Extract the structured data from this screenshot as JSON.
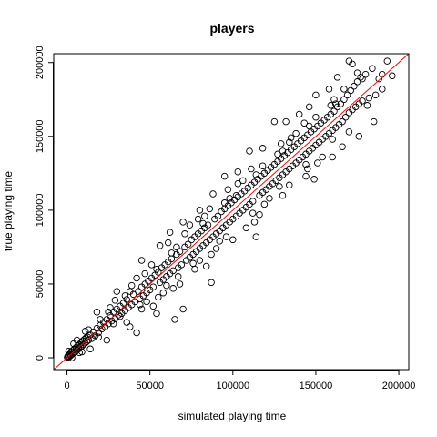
{
  "chart_data": {
    "type": "scatter",
    "title": "players",
    "xlabel": "simulated playing time",
    "ylabel": "true playing time",
    "xlim": [
      -8000,
      206000
    ],
    "ylim": [
      -8000,
      206000
    ],
    "x_ticks": [
      0,
      50000,
      100000,
      150000,
      200000
    ],
    "y_ticks": [
      0,
      50000,
      100000,
      150000,
      200000
    ],
    "x_tick_labels": [
      "0",
      "50000",
      "100000",
      "150000",
      "200000"
    ],
    "y_tick_labels": [
      "0",
      "50000",
      "100000",
      "150000",
      "200000"
    ],
    "reference_line": {
      "type": "identity",
      "intercept": 0,
      "slope": 1,
      "color": "#ff0000"
    },
    "grid": false,
    "marker": "open-circle",
    "point_color": "#000000",
    "points": [
      [
        200,
        300
      ],
      [
        500,
        1200
      ],
      [
        800,
        600
      ],
      [
        1200,
        2000
      ],
      [
        1500,
        800
      ],
      [
        1800,
        3000
      ],
      [
        2200,
        1500
      ],
      [
        2500,
        4200
      ],
      [
        3000,
        2500
      ],
      [
        3500,
        5000
      ],
      [
        4000,
        3200
      ],
      [
        4500,
        6000
      ],
      [
        5000,
        4000
      ],
      [
        5500,
        7000
      ],
      [
        6000,
        5200
      ],
      [
        6500,
        8200
      ],
      [
        7000,
        6000
      ],
      [
        7500,
        9000
      ],
      [
        8000,
        7500
      ],
      [
        8500,
        10500
      ],
      [
        9000,
        8000
      ],
      [
        9500,
        11500
      ],
      [
        10000,
        9000
      ],
      [
        10500,
        12500
      ],
      [
        11000,
        10000
      ],
      [
        11500,
        13500
      ],
      [
        12000,
        11000
      ],
      [
        12500,
        14000
      ],
      [
        13000,
        12000
      ],
      [
        14000,
        15500
      ],
      [
        15000,
        13000
      ],
      [
        16000,
        17500
      ],
      [
        17000,
        15000
      ],
      [
        18000,
        20000
      ],
      [
        19000,
        17000
      ],
      [
        20000,
        22000
      ],
      [
        21000,
        19500
      ],
      [
        22000,
        24000
      ],
      [
        23000,
        21000
      ],
      [
        24000,
        26000
      ],
      [
        25000,
        23000
      ],
      [
        26000,
        28500
      ],
      [
        27000,
        25000
      ],
      [
        28000,
        31000
      ],
      [
        29000,
        26500
      ],
      [
        30000,
        33000
      ],
      [
        31000,
        29000
      ],
      [
        32000,
        35000
      ],
      [
        33000,
        30000
      ],
      [
        34000,
        37000
      ],
      [
        35000,
        32000
      ],
      [
        36000,
        39500
      ],
      [
        37000,
        34000
      ],
      [
        38000,
        21000
      ],
      [
        39000,
        36000
      ],
      [
        40000,
        43000
      ],
      [
        41000,
        38000
      ],
      [
        42000,
        17000
      ],
      [
        43000,
        45000
      ],
      [
        44000,
        40000
      ],
      [
        45000,
        48000
      ],
      [
        46000,
        42000
      ],
      [
        47000,
        50000
      ],
      [
        48000,
        44000
      ],
      [
        49000,
        52000
      ],
      [
        50000,
        46000
      ],
      [
        51000,
        54000
      ],
      [
        52000,
        48000
      ],
      [
        53000,
        56000
      ],
      [
        54000,
        30000
      ],
      [
        55000,
        58000
      ],
      [
        56000,
        51000
      ],
      [
        57000,
        61000
      ],
      [
        58000,
        53000
      ],
      [
        59000,
        63000
      ],
      [
        60000,
        55000
      ],
      [
        61000,
        65000
      ],
      [
        62000,
        57000
      ],
      [
        63000,
        67000
      ],
      [
        64000,
        59000
      ],
      [
        65000,
        26000
      ],
      [
        66000,
        70000
      ],
      [
        67000,
        61000
      ],
      [
        68000,
        72000
      ],
      [
        69000,
        63000
      ],
      [
        70000,
        33000
      ],
      [
        71000,
        75000
      ],
      [
        72000,
        66000
      ],
      [
        73000,
        77000
      ],
      [
        74000,
        68000
      ],
      [
        75000,
        80000
      ],
      [
        76000,
        70000
      ],
      [
        77000,
        82000
      ],
      [
        78000,
        72000
      ],
      [
        79000,
        84000
      ],
      [
        80000,
        74000
      ],
      [
        81000,
        86000
      ],
      [
        82000,
        76000
      ],
      [
        83000,
        88000
      ],
      [
        84000,
        78000
      ],
      [
        85000,
        90000
      ],
      [
        86000,
        80000
      ],
      [
        87000,
        51000
      ],
      [
        88000,
        82000
      ],
      [
        89000,
        94000
      ],
      [
        90000,
        84000
      ],
      [
        91000,
        96000
      ],
      [
        92000,
        86000
      ],
      [
        93000,
        99000
      ],
      [
        94000,
        88000
      ],
      [
        95000,
        101000
      ],
      [
        96000,
        90000
      ],
      [
        97000,
        103000
      ],
      [
        98000,
        92000
      ],
      [
        99000,
        105000
      ],
      [
        100000,
        94000
      ],
      [
        101000,
        107000
      ],
      [
        102000,
        96000
      ],
      [
        103000,
        109000
      ],
      [
        104000,
        98000
      ],
      [
        105000,
        111000
      ],
      [
        106000,
        100000
      ],
      [
        107000,
        113000
      ],
      [
        108000,
        102000
      ],
      [
        109000,
        115000
      ],
      [
        110000,
        104000
      ],
      [
        111000,
        117000
      ],
      [
        112000,
        106000
      ],
      [
        113000,
        119000
      ],
      [
        114000,
        82000
      ],
      [
        115000,
        121000
      ],
      [
        116000,
        110000
      ],
      [
        117000,
        123000
      ],
      [
        118000,
        112000
      ],
      [
        119000,
        125000
      ],
      [
        120000,
        114000
      ],
      [
        121000,
        127000
      ],
      [
        122000,
        116000
      ],
      [
        123000,
        129000
      ],
      [
        124000,
        118000
      ],
      [
        125000,
        131000
      ],
      [
        126000,
        120000
      ],
      [
        127000,
        133000
      ],
      [
        128000,
        122000
      ],
      [
        129000,
        135000
      ],
      [
        130000,
        124000
      ],
      [
        131000,
        137000
      ],
      [
        132000,
        126000
      ],
      [
        133000,
        139000
      ],
      [
        134000,
        128000
      ],
      [
        135000,
        141000
      ],
      [
        136000,
        130000
      ],
      [
        137000,
        143000
      ],
      [
        138000,
        132000
      ],
      [
        139000,
        145000
      ],
      [
        140000,
        134000
      ],
      [
        141000,
        147000
      ],
      [
        142000,
        136000
      ],
      [
        143000,
        149000
      ],
      [
        144000,
        138000
      ],
      [
        145000,
        151000
      ],
      [
        146000,
        140000
      ],
      [
        147000,
        153000
      ],
      [
        148000,
        142000
      ],
      [
        149000,
        155000
      ],
      [
        150000,
        144000
      ],
      [
        151000,
        157000
      ],
      [
        152000,
        146000
      ],
      [
        153000,
        159000
      ],
      [
        154000,
        148000
      ],
      [
        155000,
        161000
      ],
      [
        156000,
        150000
      ],
      [
        157000,
        163000
      ],
      [
        158000,
        152000
      ],
      [
        159000,
        165000
      ],
      [
        160000,
        154000
      ],
      [
        161000,
        167000
      ],
      [
        162000,
        156000
      ],
      [
        163000,
        170000
      ],
      [
        164000,
        158000
      ],
      [
        165000,
        172000
      ],
      [
        166000,
        160000
      ],
      [
        167000,
        175000
      ],
      [
        168000,
        163000
      ],
      [
        169000,
        178000
      ],
      [
        170000,
        166000
      ],
      [
        171000,
        181000
      ],
      [
        172000,
        168000
      ],
      [
        173000,
        184000
      ],
      [
        174000,
        170000
      ],
      [
        175000,
        187000
      ],
      [
        176000,
        172000
      ],
      [
        177000,
        190000
      ],
      [
        178000,
        174000
      ],
      [
        180000,
        192000
      ],
      [
        182000,
        176000
      ],
      [
        184000,
        196000
      ],
      [
        186000,
        178000
      ],
      [
        188000,
        189000
      ],
      [
        190000,
        192000
      ],
      [
        193000,
        201000
      ],
      [
        196000,
        191000
      ],
      [
        170000,
        201000
      ],
      [
        172000,
        199000
      ],
      [
        163000,
        190000
      ],
      [
        150000,
        178000
      ],
      [
        140000,
        165000
      ],
      [
        125000,
        160000
      ],
      [
        110000,
        140000
      ],
      [
        95000,
        123000
      ],
      [
        80000,
        100000
      ],
      [
        62000,
        85000
      ],
      [
        45000,
        66000
      ],
      [
        30000,
        45000
      ],
      [
        18000,
        31000
      ],
      [
        56000,
        76000
      ],
      [
        70000,
        92000
      ],
      [
        88000,
        111000
      ],
      [
        103000,
        126000
      ],
      [
        118000,
        142000
      ],
      [
        132000,
        160000
      ],
      [
        146000,
        170000
      ],
      [
        158000,
        182000
      ],
      [
        36000,
        24000
      ],
      [
        52000,
        35000
      ],
      [
        68000,
        50000
      ],
      [
        84000,
        62000
      ],
      [
        100000,
        80000
      ],
      [
        116000,
        97000
      ],
      [
        130000,
        110000
      ],
      [
        144000,
        123000
      ],
      [
        160000,
        136000
      ],
      [
        176000,
        150000
      ],
      [
        185000,
        160000
      ],
      [
        24000,
        12000
      ],
      [
        14000,
        6000
      ],
      [
        6000,
        12000
      ],
      [
        3000,
        0
      ],
      [
        1000,
        4500
      ],
      [
        7500,
        3500
      ],
      [
        42000,
        54000
      ],
      [
        58000,
        44000
      ],
      [
        74000,
        90000
      ],
      [
        90000,
        74000
      ],
      [
        106000,
        120000
      ],
      [
        122000,
        108000
      ],
      [
        138000,
        152000
      ],
      [
        154000,
        136000
      ],
      [
        170000,
        153000
      ],
      [
        77000,
        60000
      ],
      [
        61000,
        78000
      ],
      [
        45000,
        33000
      ],
      [
        29000,
        39000
      ],
      [
        97000,
        114000
      ],
      [
        113000,
        92000
      ],
      [
        129000,
        145000
      ],
      [
        145000,
        128000
      ],
      [
        161000,
        175000
      ],
      [
        83000,
        96000
      ],
      [
        67000,
        55000
      ],
      [
        51000,
        63000
      ],
      [
        35000,
        42000
      ],
      [
        19000,
        14000
      ],
      [
        11000,
        18000
      ],
      [
        39000,
        49000
      ],
      [
        55000,
        41000
      ],
      [
        71000,
        84000
      ],
      [
        87000,
        70000
      ],
      [
        103000,
        118000
      ],
      [
        119000,
        104000
      ],
      [
        135000,
        149000
      ],
      [
        151000,
        132000
      ],
      [
        167000,
        182000
      ],
      [
        25000,
        31000
      ],
      [
        47000,
        57000
      ],
      [
        63000,
        71000
      ],
      [
        79000,
        94000
      ],
      [
        95000,
        105000
      ],
      [
        111000,
        128000
      ],
      [
        127000,
        138000
      ],
      [
        143000,
        159000
      ],
      [
        159000,
        171000
      ],
      [
        175000,
        193000
      ],
      [
        32000,
        28000
      ],
      [
        48000,
        38000
      ],
      [
        64000,
        47000
      ],
      [
        80000,
        66000
      ],
      [
        96000,
        82000
      ],
      [
        112000,
        98000
      ],
      [
        128000,
        116000
      ],
      [
        144000,
        131000
      ],
      [
        160000,
        148000
      ],
      [
        190000,
        182000
      ],
      [
        181000,
        171000
      ],
      [
        166000,
        143000
      ],
      [
        149000,
        121000
      ],
      [
        134000,
        117000
      ],
      [
        108000,
        88000
      ],
      [
        92000,
        79000
      ],
      [
        76000,
        64000
      ],
      [
        60000,
        49000
      ],
      [
        44000,
        36000
      ],
      [
        28000,
        23000
      ],
      [
        20000,
        26000
      ],
      [
        9000,
        4000
      ],
      [
        4000,
        9500
      ],
      [
        13000,
        19000
      ],
      [
        86000,
        101000
      ],
      [
        102000,
        110000
      ],
      [
        118000,
        130000
      ],
      [
        134000,
        146000
      ],
      [
        150000,
        163000
      ],
      [
        26000,
        34000
      ],
      [
        38000,
        45000
      ],
      [
        54000,
        60000
      ],
      [
        66000,
        75000
      ],
      [
        82000,
        91000
      ],
      [
        98000,
        108000
      ],
      [
        114000,
        124000
      ],
      [
        130000,
        140000
      ],
      [
        146000,
        157000
      ],
      [
        162000,
        172000
      ],
      [
        178000,
        189000
      ]
    ]
  }
}
